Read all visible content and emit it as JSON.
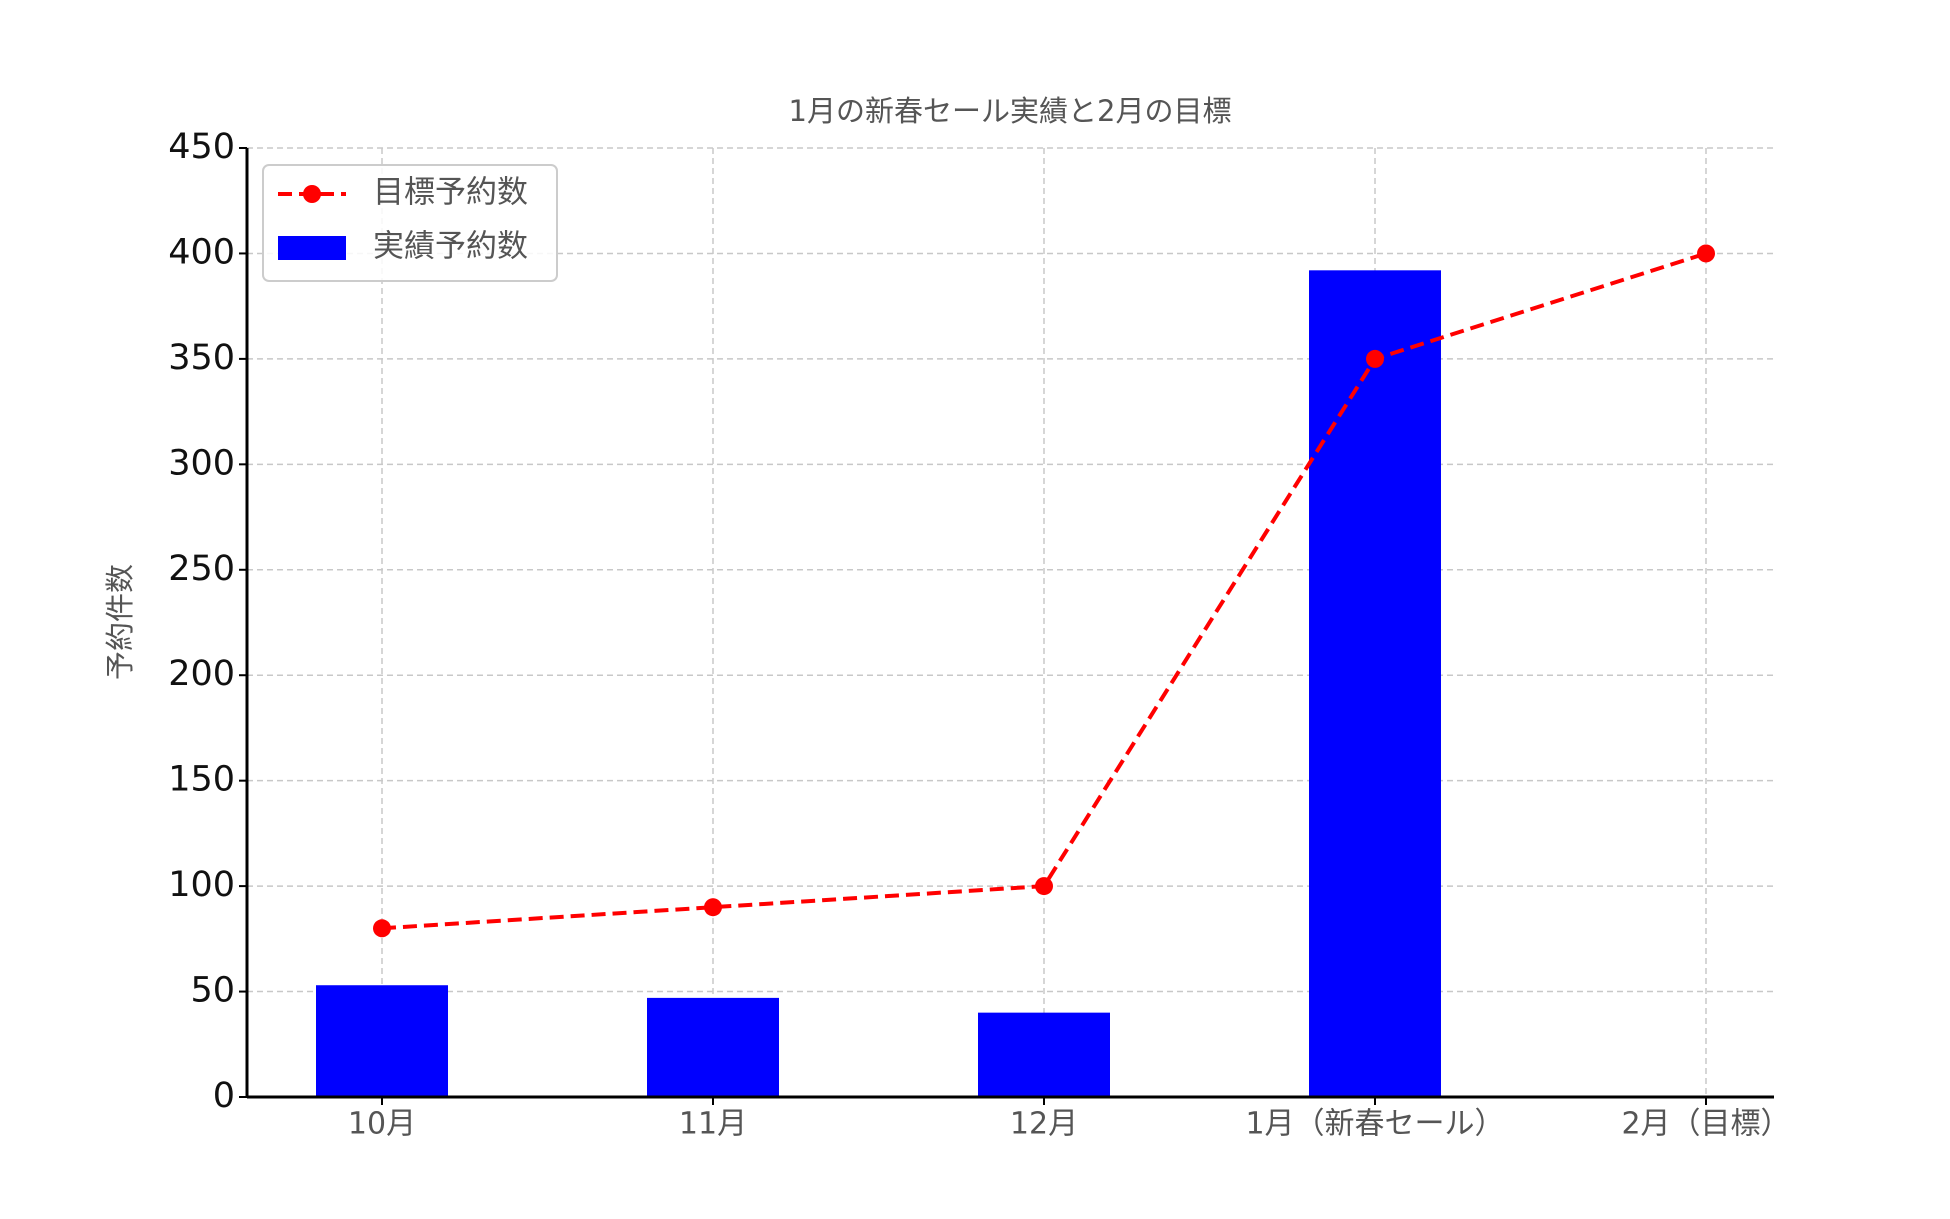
{
  "chart_data": {
    "type": "bar",
    "title": "1月の新春セール実績と2月の目標",
    "y_label": "予約件数",
    "categories": [
      "10月",
      "11月",
      "12月",
      "1月（新春セール）",
      "2月（目標）"
    ],
    "series": [
      {
        "name": "目標予約数",
        "type": "line",
        "color": "#ff0000",
        "values": [
          80,
          90,
          100,
          350,
          400
        ]
      },
      {
        "name": "実績予約数",
        "type": "bar",
        "color": "#0000ff",
        "values": [
          53,
          47,
          40,
          392,
          null
        ]
      }
    ],
    "ylim": [
      0,
      450
    ],
    "yticks": [
      0,
      50,
      100,
      150,
      200,
      250,
      300,
      350,
      400,
      450
    ],
    "grid": true,
    "legend": "upper left"
  }
}
